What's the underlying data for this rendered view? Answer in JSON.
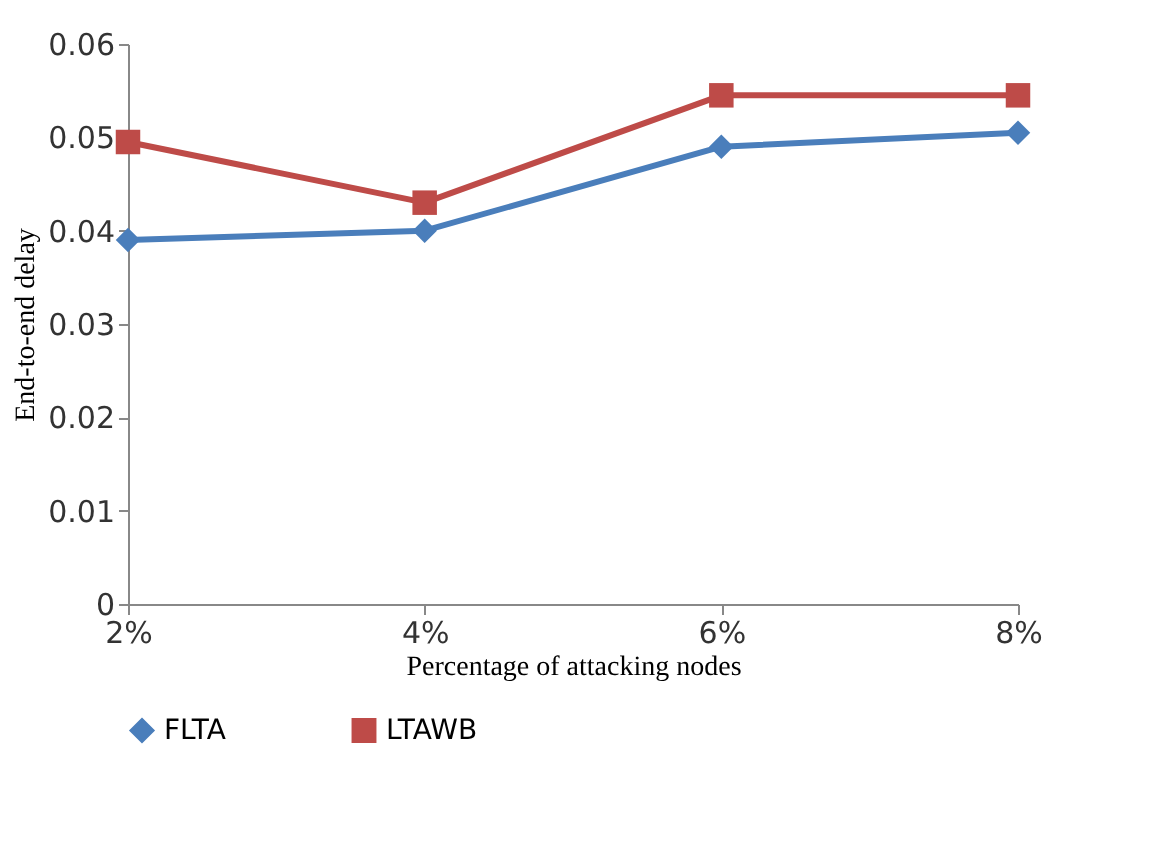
{
  "chart_data": {
    "type": "line",
    "xlabel": "Percentage of attacking nodes",
    "ylabel": "End-to-end delay",
    "categories": [
      "2%",
      "4%",
      "6%",
      "8%"
    ],
    "series": [
      {
        "name": "FLTA",
        "color": "#4a7ebb",
        "marker": "diamond",
        "values": [
          0.039,
          0.04,
          0.049,
          0.0505
        ]
      },
      {
        "name": "LTAWB",
        "color": "#be4b48",
        "marker": "square",
        "values": [
          0.0495,
          0.043,
          0.0545,
          0.0545
        ]
      }
    ],
    "ylim": [
      0,
      0.06
    ],
    "yticks": [
      0,
      0.01,
      0.02,
      0.03,
      0.04,
      0.05,
      0.06
    ],
    "grid": false,
    "legend": "bottom"
  }
}
